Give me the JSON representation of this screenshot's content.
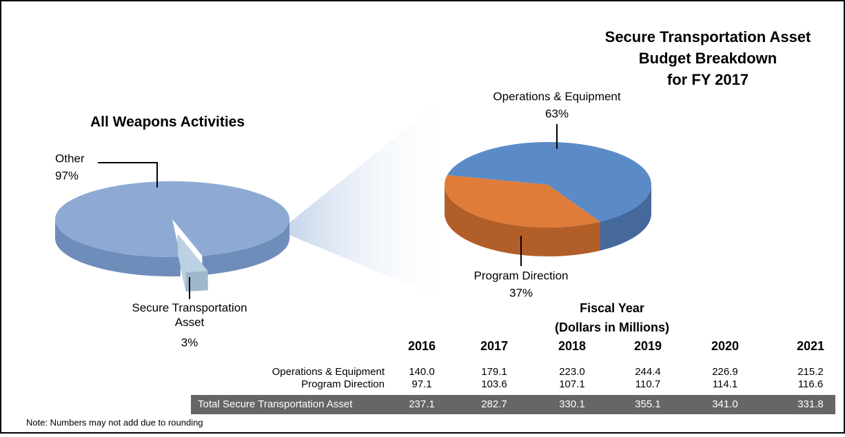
{
  "chart_data": [
    {
      "type": "pie",
      "title": "All Weapons Activities",
      "categories": [
        "Other",
        "Secure Transportation Asset"
      ],
      "values": [
        97,
        3
      ],
      "value_labels": [
        "97%",
        "3%"
      ],
      "colors": [
        "#8eaad4",
        "#bcd1e4"
      ],
      "side_colors": [
        "#6f8dba",
        "#9fb6cc"
      ]
    },
    {
      "type": "pie",
      "title": [
        "Secure Transportation Asset",
        "Budget Breakdown",
        "for FY 2017"
      ],
      "categories": [
        "Operations & Equipment",
        "Program Direction"
      ],
      "values": [
        63,
        37
      ],
      "value_labels": [
        "63%",
        "37%"
      ],
      "colors": [
        "#5b8bc7",
        "#e07c3a"
      ],
      "side_colors": [
        "#46699b",
        "#b25e29"
      ]
    }
  ],
  "table": {
    "title": [
      "Fiscal Year",
      "(Dollars in Millions)"
    ],
    "columns": [
      "2016",
      "2017",
      "2018",
      "2019",
      "2020",
      "2021"
    ],
    "rows": [
      [
        "Operations & Equipment",
        "140.0",
        "179.1",
        "223.0",
        "244.4",
        "226.9",
        "215.2"
      ],
      [
        "Program Direction",
        "97.1",
        "103.6",
        "107.1",
        "110.7",
        "114.1",
        "116.6"
      ],
      [
        "Total Secure Transportation Asset",
        "237.1",
        "282.7",
        "330.1",
        "355.1",
        "341.0",
        "331.8"
      ]
    ]
  },
  "note": "Note: Numbers may not add due to rounding"
}
